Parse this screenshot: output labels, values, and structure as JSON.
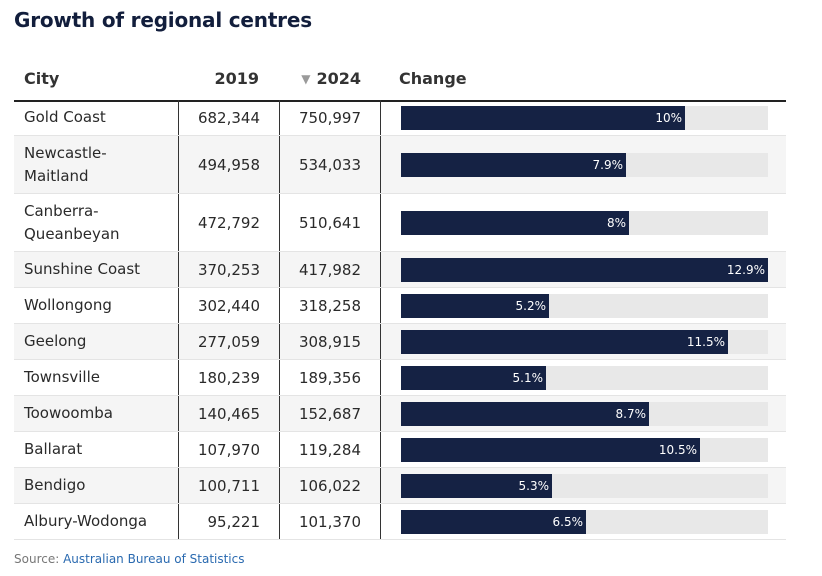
{
  "header": {
    "title": "Growth of regional centres"
  },
  "table": {
    "columns": {
      "city": "City",
      "y2019": "2019",
      "sort_icon": "▼",
      "y2024": "2024",
      "change": "Change"
    }
  },
  "chart_data": {
    "type": "table",
    "title": "Growth of regional centres",
    "max_change": 12.9,
    "rows": [
      {
        "city": "Gold Coast",
        "y2019": "682,344",
        "y2024": "750,997",
        "change": 10,
        "label": "10%"
      },
      {
        "city": "Newcastle-Maitland",
        "y2019": "494,958",
        "y2024": "534,033",
        "change": 7.9,
        "label": "7.9%"
      },
      {
        "city": "Canberra-Queanbeyan",
        "y2019": "472,792",
        "y2024": "510,641",
        "change": 8,
        "label": "8%"
      },
      {
        "city": "Sunshine Coast",
        "y2019": "370,253",
        "y2024": "417,982",
        "change": 12.9,
        "label": "12.9%"
      },
      {
        "city": "Wollongong",
        "y2019": "302,440",
        "y2024": "318,258",
        "change": 5.2,
        "label": "5.2%"
      },
      {
        "city": "Geelong",
        "y2019": "277,059",
        "y2024": "308,915",
        "change": 11.5,
        "label": "11.5%"
      },
      {
        "city": "Townsville",
        "y2019": "180,239",
        "y2024": "189,356",
        "change": 5.1,
        "label": "5.1%"
      },
      {
        "city": "Toowoomba",
        "y2019": "140,465",
        "y2024": "152,687",
        "change": 8.7,
        "label": "8.7%"
      },
      {
        "city": "Ballarat",
        "y2019": "107,970",
        "y2024": "119,284",
        "change": 10.5,
        "label": "10.5%"
      },
      {
        "city": "Bendigo",
        "y2019": "100,711",
        "y2024": "106,022",
        "change": 5.3,
        "label": "5.3%"
      },
      {
        "city": "Albury-Wodonga",
        "y2019": "95,221",
        "y2024": "101,370",
        "change": 6.5,
        "label": "6.5%"
      }
    ]
  },
  "footer": {
    "source_label": "Source:",
    "source_link": "Australian Bureau of Statistics"
  }
}
